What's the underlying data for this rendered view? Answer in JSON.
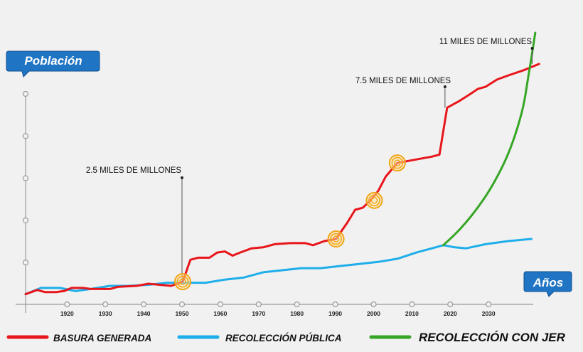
{
  "chart_data": {
    "type": "line",
    "title": "",
    "ylabel": "Población",
    "xlabel": "Años",
    "xlim": [
      1909,
      2043
    ],
    "ylim": [
      0,
      11.7
    ],
    "x_ticks": [
      1920,
      1930,
      1940,
      1950,
      1960,
      1970,
      1980,
      1990,
      2000,
      2010,
      2020,
      2030
    ],
    "x_tick_labels": [
      "1920",
      "1930",
      "1940",
      "1950",
      "1960",
      "1970",
      "1980",
      "1990",
      "2000",
      "2010",
      "2020",
      "2030"
    ],
    "y_tick_count": 5,
    "series": [
      {
        "name": "BASURA GENERADA",
        "color": "#e8161b",
        "points": [
          [
            1909,
            0.25
          ],
          [
            1912,
            0.45
          ],
          [
            1914,
            0.35
          ],
          [
            1917,
            0.35
          ],
          [
            1919,
            0.4
          ],
          [
            1921,
            0.55
          ],
          [
            1924,
            0.55
          ],
          [
            1926,
            0.5
          ],
          [
            1928,
            0.5
          ],
          [
            1931,
            0.5
          ],
          [
            1933,
            0.6
          ],
          [
            1938,
            0.65
          ],
          [
            1941,
            0.75
          ],
          [
            1944,
            0.7
          ],
          [
            1947,
            0.65
          ],
          [
            1950,
            0.85
          ],
          [
            1952,
            1.9
          ],
          [
            1954,
            2.0
          ],
          [
            1957,
            2.0
          ],
          [
            1959,
            2.25
          ],
          [
            1961,
            2.3
          ],
          [
            1963,
            2.1
          ],
          [
            1965,
            2.25
          ],
          [
            1968,
            2.45
          ],
          [
            1971,
            2.5
          ],
          [
            1974,
            2.65
          ],
          [
            1978,
            2.7
          ],
          [
            1982,
            2.7
          ],
          [
            1984,
            2.6
          ],
          [
            1987,
            2.8
          ],
          [
            1990,
            2.9
          ],
          [
            1993,
            3.7
          ],
          [
            1995,
            4.3
          ],
          [
            1997,
            4.4
          ],
          [
            1999,
            4.75
          ],
          [
            2001,
            5.2
          ],
          [
            2003,
            5.9
          ],
          [
            2006,
            6.55
          ],
          [
            2009,
            6.65
          ],
          [
            2012,
            6.75
          ],
          [
            2015,
            6.85
          ],
          [
            2017,
            6.95
          ],
          [
            2019,
            9.2
          ],
          [
            2022,
            9.5
          ],
          [
            2025,
            9.85
          ],
          [
            2027,
            10.1
          ],
          [
            2029,
            10.2
          ],
          [
            2032,
            10.55
          ],
          [
            2035,
            10.75
          ],
          [
            2039,
            11.0
          ],
          [
            2043,
            11.3
          ]
        ]
      },
      {
        "name": "RECOLECCIÓN PÚBLICA",
        "color": "#1eaeea",
        "points": [
          [
            1909,
            0.25
          ],
          [
            1913,
            0.55
          ],
          [
            1918,
            0.55
          ],
          [
            1922,
            0.4
          ],
          [
            1926,
            0.5
          ],
          [
            1931,
            0.65
          ],
          [
            1936,
            0.65
          ],
          [
            1941,
            0.7
          ],
          [
            1946,
            0.8
          ],
          [
            1951,
            0.8
          ],
          [
            1956,
            0.8
          ],
          [
            1961,
            0.95
          ],
          [
            1966,
            1.05
          ],
          [
            1971,
            1.3
          ],
          [
            1976,
            1.4
          ],
          [
            1981,
            1.5
          ],
          [
            1986,
            1.5
          ],
          [
            1991,
            1.6
          ],
          [
            1996,
            1.7
          ],
          [
            2001,
            1.8
          ],
          [
            2006,
            1.95
          ],
          [
            2011,
            2.25
          ],
          [
            2016,
            2.5
          ],
          [
            2018,
            2.6
          ],
          [
            2021,
            2.5
          ],
          [
            2024,
            2.45
          ],
          [
            2029,
            2.65
          ],
          [
            2035,
            2.8
          ],
          [
            2041,
            2.9
          ]
        ]
      },
      {
        "name": "RECOLECCIÓN CON JER",
        "color": "#36a625",
        "points": [
          [
            2018,
            2.6
          ],
          [
            2021,
            3.1
          ],
          [
            2024,
            3.7
          ],
          [
            2027,
            4.4
          ],
          [
            2030,
            5.2
          ],
          [
            2033,
            6.2
          ],
          [
            2035,
            7.0
          ],
          [
            2037,
            8.0
          ],
          [
            2039,
            9.3
          ],
          [
            2040,
            10.5
          ],
          [
            2041,
            11.6
          ],
          [
            2042,
            12.8
          ]
        ]
      }
    ],
    "annotations": [
      {
        "label": "2.5 MILES DE MILLONES",
        "x": 1950,
        "y": 0.85
      },
      {
        "label": "7.5 MILES DE MILLONES",
        "x": 2019,
        "y": 9.2
      },
      {
        "label": "11 MILES DE MILLONES",
        "x": 2041,
        "y": 11.3
      }
    ],
    "highlight_points": [
      [
        1950,
        0.85
      ],
      [
        1990,
        2.9
      ],
      [
        2000,
        4.75
      ],
      [
        2006,
        6.55
      ]
    ],
    "legend": [
      {
        "label": "BASURA GENERADA",
        "color": "#e8161b"
      },
      {
        "label": "RECOLECCIÓN  PÚBLICA",
        "color": "#1eaeea"
      },
      {
        "label": "RECOLECCIÓN  CON JER",
        "color": "#36a625"
      }
    ],
    "legend_position": "bottom"
  }
}
